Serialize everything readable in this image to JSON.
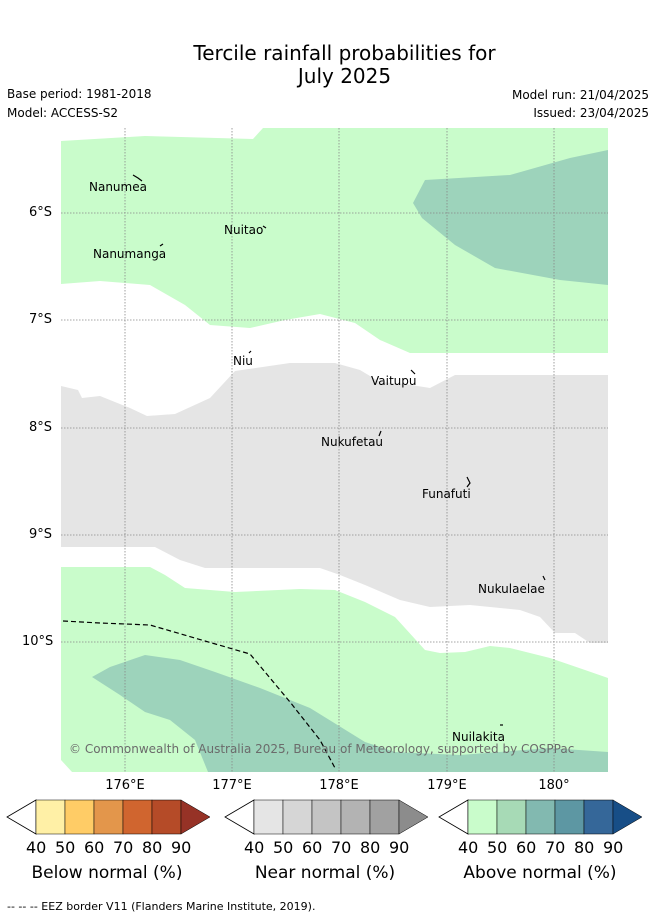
{
  "header": {
    "title_line1": "Tercile rainfall probabilities for",
    "title_line2": "July 2025",
    "base_period": "Base period: 1981-2018",
    "model": "Model: ACCESS-S2",
    "model_run": "Model run: 21/04/2025",
    "issued": "Issued: 23/04/2025"
  },
  "map": {
    "latitudes": [
      "6°S",
      "7°S",
      "8°S",
      "9°S",
      "10°S"
    ],
    "longitudes": [
      "176°E",
      "177°E",
      "178°E",
      "179°E",
      "180°"
    ],
    "places": {
      "nanumea": "Nanumea",
      "nuitao": "Nuitao",
      "nanumanga": "Nanumanga",
      "niu": "Niu",
      "vaitupu": "Vaitupu",
      "nukufetau": "Nukufetau",
      "funafuti": "Funafuti",
      "nukulaelae": "Nukulaelae",
      "nuilakita": "Nuilakita"
    },
    "copyright": "© Commonwealth of Australia 2025, Bureau of Meteorology, supported by COSPPac",
    "colors": {
      "above_40": "#c9fccb",
      "above_50": "#9dd3bb",
      "near_40": "#e5e5e5",
      "grid": "#888888",
      "eez": "#000000"
    }
  },
  "colorbars": {
    "below": {
      "label": "Below normal (%)",
      "ticks": [
        "40",
        "50",
        "60",
        "70",
        "80",
        "90"
      ],
      "colors": [
        "#fff0a6",
        "#ffcc66",
        "#e3964b",
        "#d0652f",
        "#b54b28",
        "#963226"
      ]
    },
    "near": {
      "label": "Near normal (%)",
      "ticks": [
        "40",
        "50",
        "60",
        "70",
        "80",
        "90"
      ],
      "colors": [
        "#e5e5e5",
        "#d6d6d6",
        "#c4c4c4",
        "#b3b3b3",
        "#a1a1a1",
        "#8c8c8c"
      ]
    },
    "above": {
      "label": "Above normal (%)",
      "ticks": [
        "40",
        "50",
        "60",
        "70",
        "80",
        "90"
      ],
      "colors": [
        "#c9fccb",
        "#a7dab6",
        "#82b9b0",
        "#5d97a3",
        "#356799",
        "#174e87"
      ]
    }
  },
  "footer": {
    "legend_text": "-- -- -- EEZ border V11 (Flanders Marine Institute, 2019)."
  }
}
